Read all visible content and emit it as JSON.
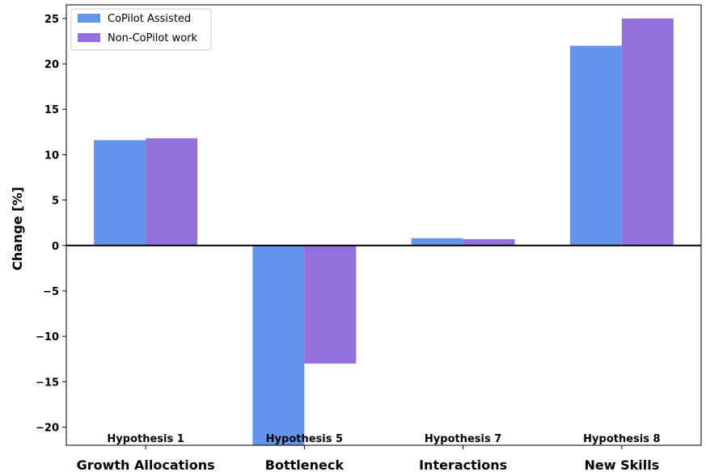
{
  "chart_data": {
    "type": "bar",
    "categories": [
      "Growth Allocations",
      "Bottleneck",
      "Interactions",
      "New Skills"
    ],
    "hypotheses": [
      "Hypothesis 1",
      "Hypothesis 5",
      "Hypothesis 7",
      "Hypothesis 8"
    ],
    "series": [
      {
        "name": "CoPilot Assisted",
        "color": "#6495ED",
        "values": [
          11.6,
          -22.0,
          0.8,
          22.0
        ]
      },
      {
        "name": "Non-CoPilot work",
        "color": "#9370DB",
        "values": [
          11.8,
          -13.0,
          0.7,
          25.0
        ]
      }
    ],
    "xlabel": "",
    "ylabel": "Change [%]",
    "ylim": [
      -22,
      26.5
    ],
    "yticks": [
      25,
      20,
      15,
      10,
      5,
      0,
      -5,
      -10,
      -15,
      -20
    ],
    "ytick_labels": [
      "25",
      "20",
      "15",
      "10",
      "5",
      "0",
      "−5",
      "−10",
      "−15",
      "−20"
    ],
    "grid": false,
    "legend_position": "top-left",
    "zero_line": true
  }
}
